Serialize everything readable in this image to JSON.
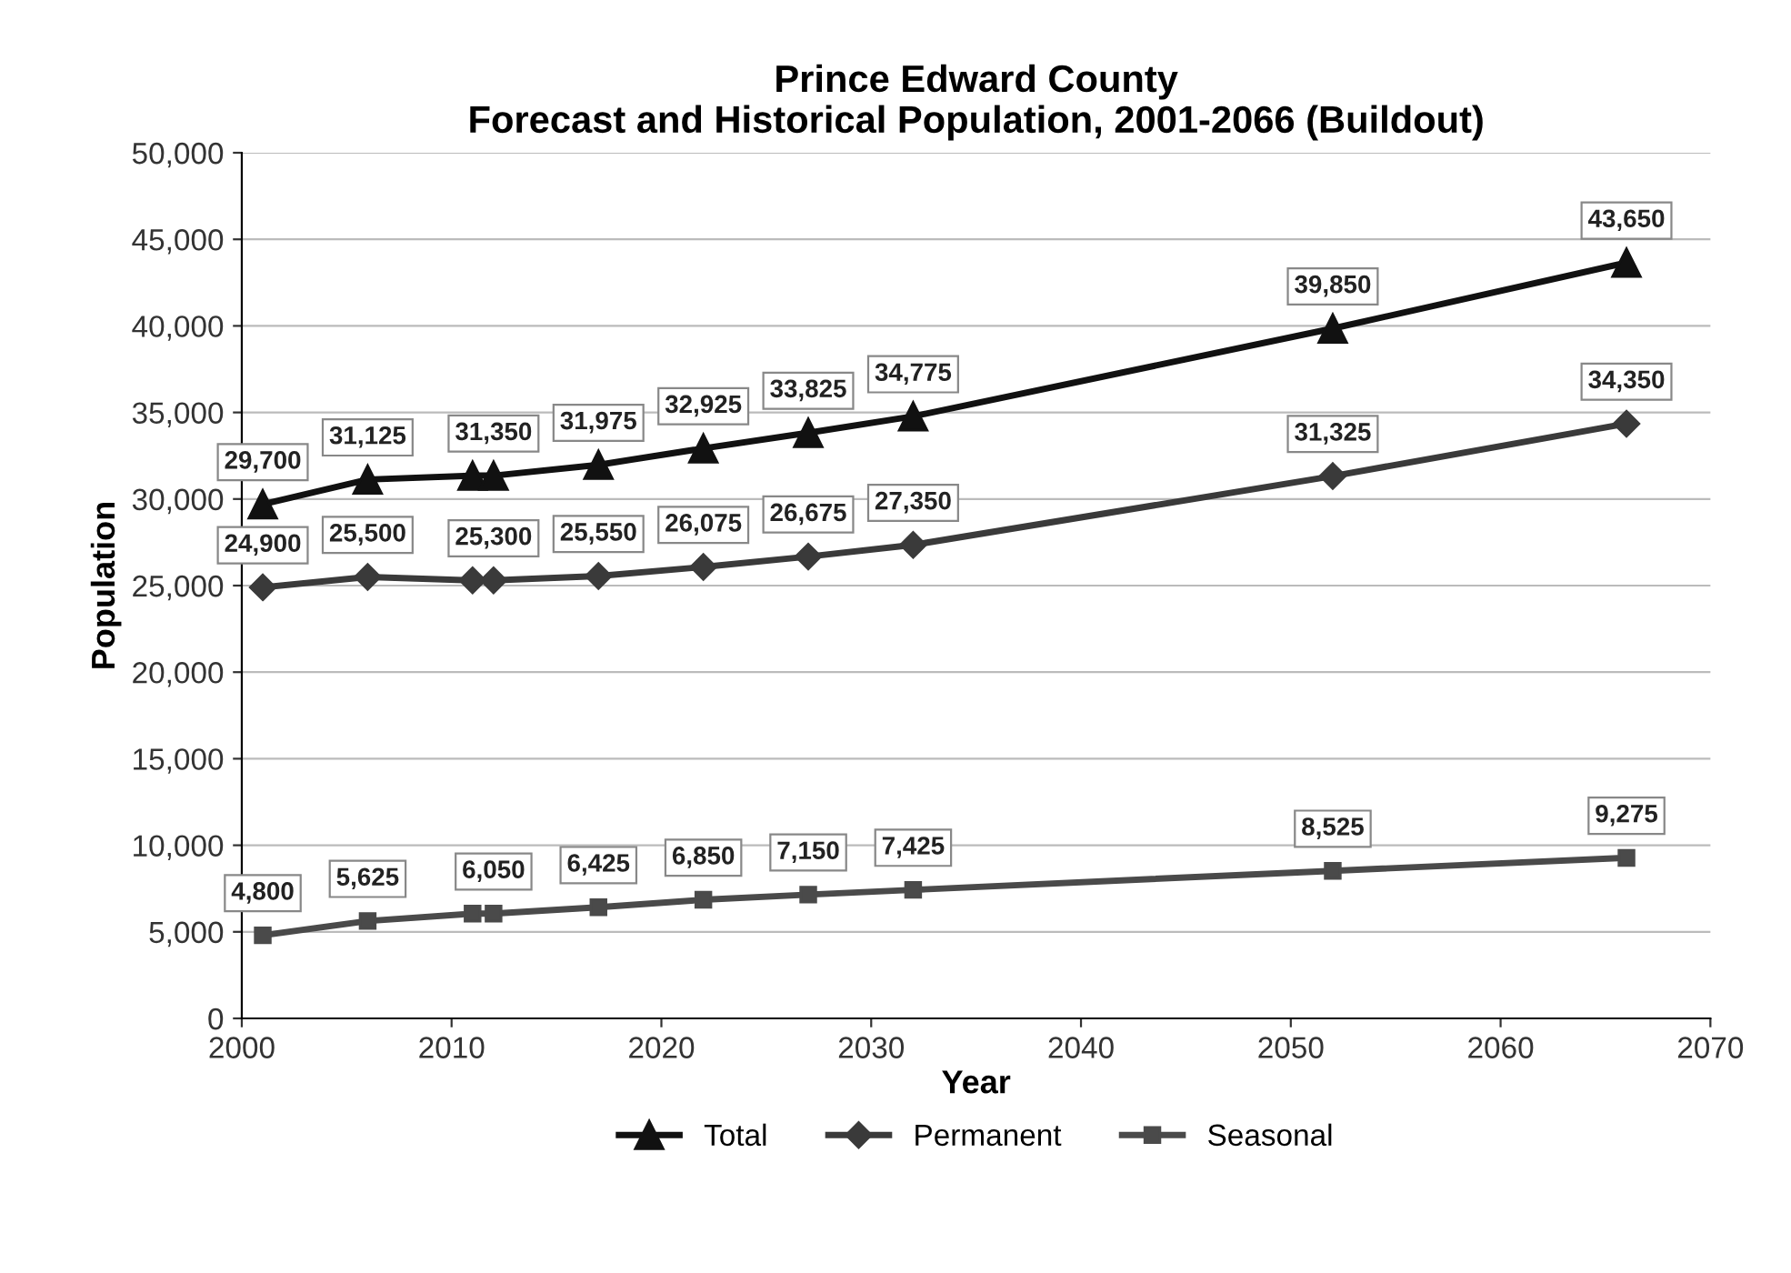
{
  "chart_data": {
    "type": "line",
    "title": "Prince Edward County\nForecast and Historical Population, 2001-2066 (Buildout)",
    "xlabel": "Year",
    "ylabel": "Population",
    "x": [
      2001,
      2006,
      2011,
      2012,
      2017,
      2022,
      2027,
      2032,
      2052,
      2066
    ],
    "series": [
      {
        "name": "Total",
        "color": "#111111",
        "marker": "triangle",
        "values": [
          29700,
          31125,
          31350,
          31350,
          31975,
          32925,
          33825,
          34775,
          39850,
          43650
        ],
        "value_labels": [
          "29,700",
          "31,125",
          null,
          "31,350",
          "31,975",
          "32,925",
          "33,825",
          "34,775",
          "39,850",
          "43,650"
        ]
      },
      {
        "name": "Permanent",
        "color": "#3a3a3a",
        "marker": "diamond",
        "values": [
          24900,
          25500,
          25300,
          25300,
          25550,
          26075,
          26675,
          27350,
          31325,
          34350
        ],
        "value_labels": [
          "24,900",
          "25,500",
          null,
          "25,300",
          "25,550",
          "26,075",
          "26,675",
          "27,350",
          "31,325",
          "34,350"
        ]
      },
      {
        "name": "Seasonal",
        "color": "#4a4a4a",
        "marker": "square",
        "values": [
          4800,
          5625,
          6050,
          6050,
          6425,
          6850,
          7150,
          7425,
          8525,
          9275
        ],
        "value_labels": [
          "4,800",
          "5,625",
          null,
          "6,050",
          "6,425",
          "6,850",
          "7,150",
          "7,425",
          "8,525",
          "9,275"
        ]
      }
    ],
    "xlim": [
      2000,
      2070
    ],
    "xticks": [
      2000,
      2010,
      2020,
      2030,
      2040,
      2050,
      2060,
      2070
    ],
    "ylim": [
      0,
      50000
    ],
    "yticks": [
      {
        "value": 0,
        "label": "0"
      },
      {
        "value": 5000,
        "label": "5,000"
      },
      {
        "value": 10000,
        "label": "10,000"
      },
      {
        "value": 15000,
        "label": "15,000"
      },
      {
        "value": 20000,
        "label": "20,000"
      },
      {
        "value": 25000,
        "label": "25,000"
      },
      {
        "value": 30000,
        "label": "30,000"
      },
      {
        "value": 35000,
        "label": "35,000"
      },
      {
        "value": 40000,
        "label": "40,000"
      },
      {
        "value": 45000,
        "label": "45,000"
      },
      {
        "value": 50000,
        "label": "50,000"
      }
    ],
    "grid": "y",
    "legend": "bottom",
    "line_style": "solid"
  }
}
